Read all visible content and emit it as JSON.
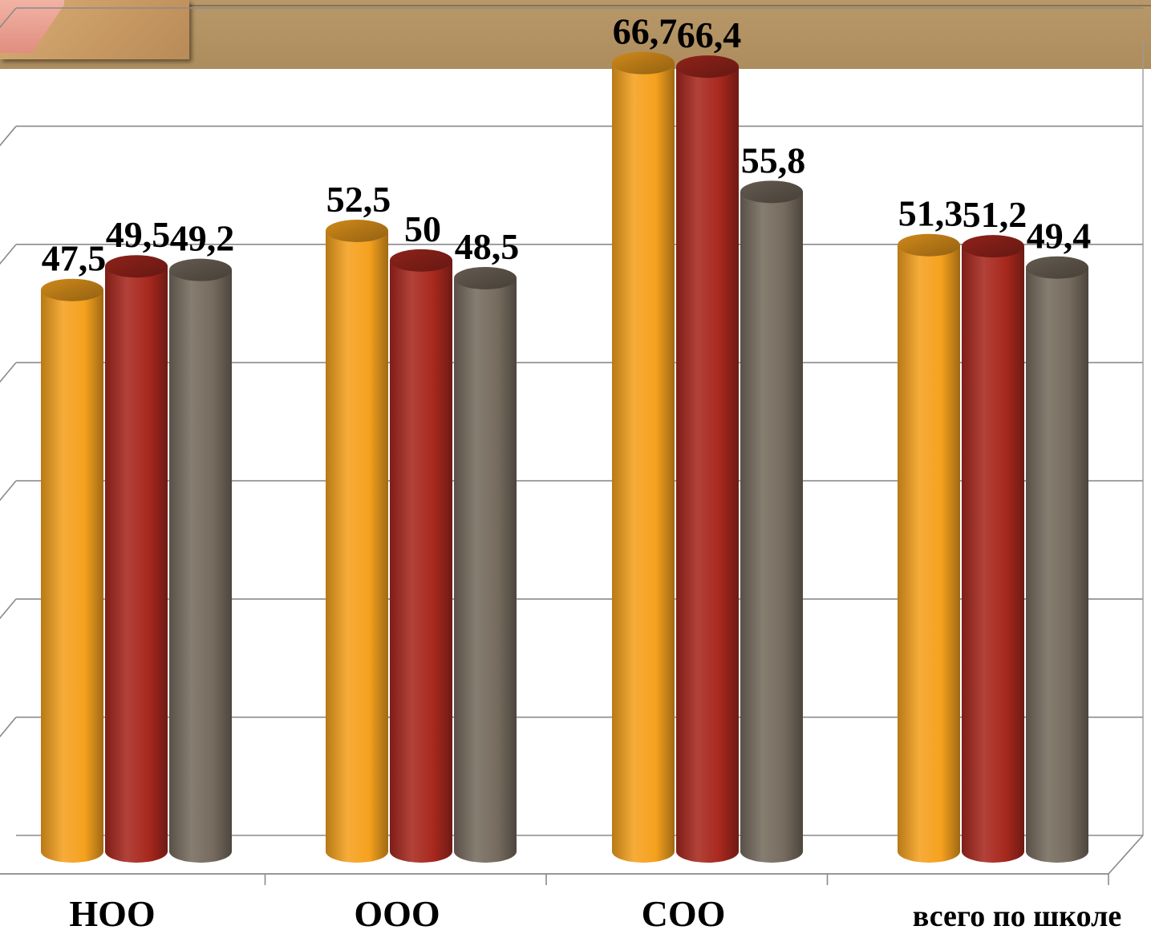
{
  "chart_data": {
    "type": "bar",
    "categories": [
      "НОО",
      "ООО",
      "СОО",
      "всего по школе"
    ],
    "series": [
      {
        "values": [
          47.5,
          52.5,
          66.7,
          51.3
        ],
        "color": "#f5a11e"
      },
      {
        "values": [
          49.5,
          50,
          66.4,
          51.2
        ],
        "color": "#a8281e"
      },
      {
        "values": [
          49.2,
          48.5,
          55.8,
          49.4
        ],
        "color": "#766b5e"
      }
    ],
    "value_labels": [
      [
        "47,5",
        "52,5",
        "66,7",
        "51,3"
      ],
      [
        "49,5",
        "50",
        "66,4",
        "51,2"
      ],
      [
        "49,2",
        "48,5",
        "55,8",
        "49,4"
      ]
    ],
    "ylim": [
      0,
      70
    ],
    "grid": true,
    "legend": "none",
    "style": "3d-cylinder"
  }
}
